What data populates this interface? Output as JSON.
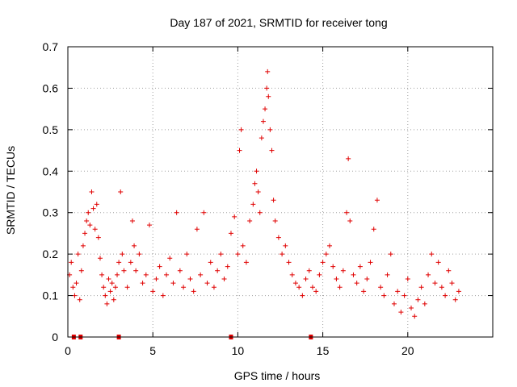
{
  "chart_data": {
    "type": "scatter",
    "title": "Day 187 of 2021, SRMTID for receiver tong",
    "xlabel": "GPS time / hours",
    "ylabel": "SRMTID / TECUs",
    "xlim": [
      0,
      25
    ],
    "ylim": [
      0,
      0.7
    ],
    "xticks": [
      0,
      5,
      10,
      15,
      20
    ],
    "yticks": [
      0,
      0.1,
      0.2,
      0.3,
      0.4,
      0.5,
      0.6,
      0.7
    ],
    "x_tick_labels": [
      "0",
      "5",
      "10",
      "15",
      "20"
    ],
    "y_tick_labels": [
      "0",
      "0.1",
      "0.2",
      "0.3",
      "0.4",
      "0.5",
      "0.6",
      "0.7"
    ],
    "grid": true,
    "marker": "+",
    "color": "#e00000",
    "series": [
      {
        "name": "SRMTID",
        "points": [
          [
            0.1,
            0.15
          ],
          [
            0.2,
            0.18
          ],
          [
            0.3,
            0.12
          ],
          [
            0.4,
            0.1
          ],
          [
            0.5,
            0.13
          ],
          [
            0.6,
            0.2
          ],
          [
            0.7,
            0.09
          ],
          [
            0.8,
            0.16
          ],
          [
            0.9,
            0.22
          ],
          [
            1.0,
            0.25
          ],
          [
            1.1,
            0.28
          ],
          [
            1.2,
            0.3
          ],
          [
            1.3,
            0.27
          ],
          [
            1.4,
            0.35
          ],
          [
            1.5,
            0.31
          ],
          [
            1.6,
            0.26
          ],
          [
            1.7,
            0.32
          ],
          [
            1.8,
            0.24
          ],
          [
            1.9,
            0.19
          ],
          [
            2.0,
            0.15
          ],
          [
            2.1,
            0.12
          ],
          [
            2.2,
            0.1
          ],
          [
            2.3,
            0.08
          ],
          [
            2.4,
            0.14
          ],
          [
            2.5,
            0.11
          ],
          [
            2.6,
            0.13
          ],
          [
            2.7,
            0.09
          ],
          [
            2.8,
            0.12
          ],
          [
            2.9,
            0.15
          ],
          [
            3.0,
            0.18
          ],
          [
            3.1,
            0.35
          ],
          [
            3.2,
            0.2
          ],
          [
            3.3,
            0.16
          ],
          [
            3.5,
            0.12
          ],
          [
            3.7,
            0.18
          ],
          [
            3.8,
            0.28
          ],
          [
            3.9,
            0.22
          ],
          [
            4.0,
            0.16
          ],
          [
            4.2,
            0.2
          ],
          [
            4.4,
            0.13
          ],
          [
            4.6,
            0.15
          ],
          [
            4.8,
            0.27
          ],
          [
            5.0,
            0.11
          ],
          [
            5.2,
            0.14
          ],
          [
            5.4,
            0.17
          ],
          [
            5.6,
            0.1
          ],
          [
            5.8,
            0.15
          ],
          [
            6.0,
            0.19
          ],
          [
            6.2,
            0.13
          ],
          [
            6.4,
            0.3
          ],
          [
            6.6,
            0.16
          ],
          [
            6.8,
            0.12
          ],
          [
            7.0,
            0.2
          ],
          [
            7.2,
            0.14
          ],
          [
            7.4,
            0.11
          ],
          [
            7.6,
            0.26
          ],
          [
            7.8,
            0.15
          ],
          [
            8.0,
            0.3
          ],
          [
            8.2,
            0.13
          ],
          [
            8.4,
            0.18
          ],
          [
            8.6,
            0.12
          ],
          [
            8.8,
            0.16
          ],
          [
            9.0,
            0.2
          ],
          [
            9.2,
            0.14
          ],
          [
            9.4,
            0.17
          ],
          [
            9.6,
            0.25
          ],
          [
            9.8,
            0.29
          ],
          [
            10.0,
            0.2
          ],
          [
            10.1,
            0.45
          ],
          [
            10.2,
            0.5
          ],
          [
            10.3,
            0.22
          ],
          [
            10.5,
            0.18
          ],
          [
            10.7,
            0.28
          ],
          [
            10.9,
            0.32
          ],
          [
            11.0,
            0.37
          ],
          [
            11.1,
            0.4
          ],
          [
            11.2,
            0.35
          ],
          [
            11.3,
            0.3
          ],
          [
            11.4,
            0.48
          ],
          [
            11.5,
            0.52
          ],
          [
            11.6,
            0.55
          ],
          [
            11.7,
            0.6
          ],
          [
            11.75,
            0.64
          ],
          [
            11.8,
            0.58
          ],
          [
            11.9,
            0.5
          ],
          [
            12.0,
            0.45
          ],
          [
            12.1,
            0.33
          ],
          [
            12.2,
            0.28
          ],
          [
            12.4,
            0.24
          ],
          [
            12.6,
            0.2
          ],
          [
            12.8,
            0.22
          ],
          [
            13.0,
            0.18
          ],
          [
            13.2,
            0.15
          ],
          [
            13.4,
            0.13
          ],
          [
            13.6,
            0.12
          ],
          [
            13.8,
            0.1
          ],
          [
            14.0,
            0.14
          ],
          [
            14.2,
            0.16
          ],
          [
            14.4,
            0.12
          ],
          [
            14.6,
            0.11
          ],
          [
            14.8,
            0.15
          ],
          [
            15.0,
            0.18
          ],
          [
            15.2,
            0.2
          ],
          [
            15.4,
            0.22
          ],
          [
            15.6,
            0.17
          ],
          [
            15.8,
            0.14
          ],
          [
            16.0,
            0.12
          ],
          [
            16.2,
            0.16
          ],
          [
            16.4,
            0.3
          ],
          [
            16.5,
            0.43
          ],
          [
            16.6,
            0.28
          ],
          [
            16.8,
            0.15
          ],
          [
            17.0,
            0.13
          ],
          [
            17.2,
            0.17
          ],
          [
            17.4,
            0.11
          ],
          [
            17.6,
            0.14
          ],
          [
            17.8,
            0.18
          ],
          [
            18.0,
            0.26
          ],
          [
            18.2,
            0.33
          ],
          [
            18.4,
            0.12
          ],
          [
            18.6,
            0.1
          ],
          [
            18.8,
            0.15
          ],
          [
            19.0,
            0.2
          ],
          [
            19.2,
            0.08
          ],
          [
            19.4,
            0.11
          ],
          [
            19.6,
            0.06
          ],
          [
            19.8,
            0.1
          ],
          [
            20.0,
            0.14
          ],
          [
            20.2,
            0.07
          ],
          [
            20.4,
            0.05
          ],
          [
            20.6,
            0.09
          ],
          [
            20.8,
            0.12
          ],
          [
            21.0,
            0.08
          ],
          [
            21.2,
            0.15
          ],
          [
            21.4,
            0.2
          ],
          [
            21.6,
            0.13
          ],
          [
            21.8,
            0.18
          ],
          [
            22.0,
            0.12
          ],
          [
            22.2,
            0.1
          ],
          [
            22.4,
            0.16
          ],
          [
            22.6,
            0.13
          ],
          [
            22.8,
            0.09
          ],
          [
            23.0,
            0.11
          ]
        ]
      }
    ],
    "gap_markers_x": [
      0.35,
      0.75,
      3.0,
      9.6,
      14.3
    ]
  }
}
